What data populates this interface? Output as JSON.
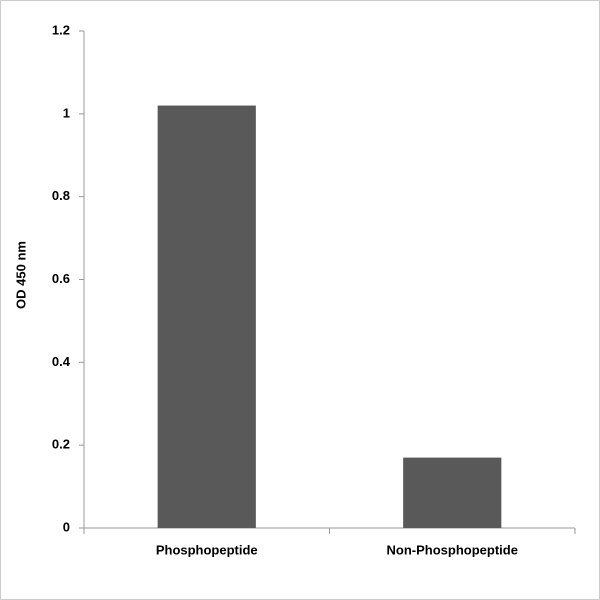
{
  "chart_data": {
    "type": "bar",
    "y_label": "OD 450 nm",
    "categories": [
      "Phosphopeptide",
      "Non-Phosphopeptide"
    ],
    "values": [
      1.02,
      0.17
    ],
    "color": "#595959",
    "ylim": [
      0,
      1.2
    ],
    "yticks": [
      0,
      0.2,
      0.4,
      0.6,
      0.8,
      1,
      1.2
    ],
    "grid": false
  }
}
